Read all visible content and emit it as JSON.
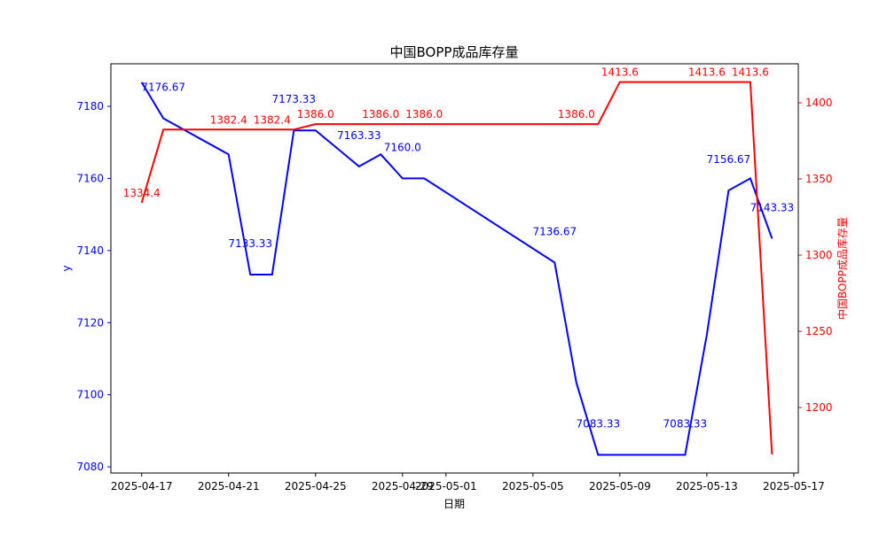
{
  "chart_data": {
    "type": "line",
    "title": "中国BOPP成品库存量",
    "xlabel": "日期",
    "ylabel_left": "y",
    "ylabel_right": "中国BOPP成品库存量",
    "x": [
      "2025-04-17",
      "2025-04-18",
      "2025-04-21",
      "2025-04-22",
      "2025-04-23",
      "2025-04-24",
      "2025-04-25",
      "2025-04-27",
      "2025-04-28",
      "2025-04-29",
      "2025-04-30",
      "2025-05-06",
      "2025-05-07",
      "2025-05-08",
      "2025-05-09",
      "2025-05-12",
      "2025-05-13",
      "2025-05-14",
      "2025-05-15",
      "2025-05-16"
    ],
    "xlim": [
      "2025-04-15T14:00",
      "2025-05-17T05:00"
    ],
    "x_ticks": [
      "2025-04-17",
      "2025-04-21",
      "2025-04-25",
      "2025-04-29",
      "2025-05-01",
      "2025-05-05",
      "2025-05-09",
      "2025-05-13",
      "2025-05-17"
    ],
    "series": [
      {
        "axis": "left",
        "color": "#0000ff",
        "values": [
          7186.67,
          7176.67,
          7166.67,
          7133.33,
          7133.33,
          7173.33,
          7173.33,
          7163.33,
          7166.67,
          7160.0,
          7160.0,
          7136.67,
          7103.33,
          7083.33,
          7083.33,
          7083.33,
          7116.67,
          7156.67,
          7160.0,
          7143.33
        ],
        "labeled_indices": [
          1,
          3,
          5,
          7,
          9,
          11,
          13,
          15,
          17,
          19
        ],
        "labels": [
          "7176.67",
          "7133.33",
          "7173.33",
          "7163.33",
          "7160.0",
          "7136.67",
          "7083.33",
          "7083.33",
          "7156.67",
          "7143.33"
        ]
      },
      {
        "axis": "right",
        "color": "#ff0000",
        "values": [
          1334.4,
          1382.4,
          1382.4,
          1382.4,
          1382.4,
          1382.4,
          1386.0,
          1386.0,
          1386.0,
          1386.0,
          1386.0,
          1386.0,
          1386.0,
          1386.0,
          1413.6,
          1413.6,
          1413.6,
          1413.6,
          1413.6,
          1169.2
        ],
        "labeled_indices": [
          0,
          2,
          4,
          6,
          8,
          10,
          12,
          14,
          16,
          18
        ],
        "labels": [
          "1334.4",
          "1382.4",
          "1382.4",
          "1386.0",
          "1386.0",
          "1386.0",
          "1386.0",
          "1413.6",
          "1413.6",
          "1413.6"
        ]
      }
    ],
    "ylim_left": [
      7078.3,
      7191.8
    ],
    "y_ticks_left": [
      "7080",
      "7100",
      "7120",
      "7140",
      "7160",
      "7180"
    ],
    "ylim_right": [
      1157.0,
      1425.6
    ],
    "y_ticks_right": [
      "1200",
      "1250",
      "1300",
      "1350",
      "1400"
    ],
    "grid": false,
    "legend": "none"
  }
}
